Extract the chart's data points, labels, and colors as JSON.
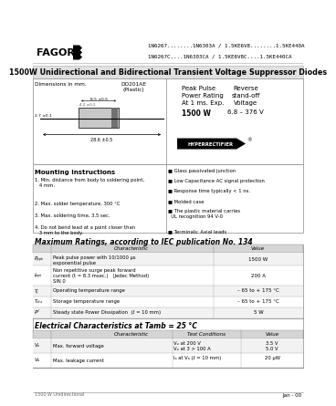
{
  "bg_color": "#ffffff",
  "header_text1": "1N6267........1N6303A / 1.5KE6V8........1.5KE440A",
  "header_text2": "1N6267C....1N6303CA / 1.5KE6V8C....1.5KE440CA",
  "company": "FAGOR",
  "title": "1500W Unidirectional and Bidirectional Transient Voltage Suppressor Diodes",
  "package_line1": "DO201AE",
  "package_line2": "(Plastic)",
  "features": [
    "Glass passivated junction",
    "Low Capacitance AC signal protection",
    "Response time typically < 1 ns.",
    "Molded case",
    "The plastic material carries\n  UL recognition 94 V-0",
    "Terminals: Axial leads"
  ],
  "mounting_title": "Mounting instructions",
  "mounting_items": [
    "1. Min. distance from body to soldering point,\n   4 mm.",
    "2. Max. solder temperature, 300 °C",
    "3. Max. soldering time, 3.5 sec.",
    "4. Do not bend lead at a point closer than\n   3 mm to the body."
  ],
  "max_ratings_title": "Maximum Ratings, according to IEC publication No. 134",
  "max_ratings": [
    [
      "Pₚₚₖ",
      "Peak pulse power with 10/1000 μs\nexponential pulse",
      "1500 W"
    ],
    [
      "Iₚₚₖ",
      "Non repetitive surge peak forward\ncurrent (t = 8.3 msec.)   (Jedec Method)\nSIN 0",
      "200 A"
    ],
    [
      "Tⱼ",
      "Operating temperature range",
      "– 65 to + 175 °C"
    ],
    [
      "Tₛₜₓ",
      "Storage temperature range",
      "– 65 to + 175 °C"
    ],
    [
      "Pᵈ",
      "Steady state Power Dissipation  (ℓ = 10 mm)",
      "5 W"
    ]
  ],
  "elec_title": "Electrical Characteristics at Tamb = 25 °C",
  "elec_rows": [
    [
      "Vₔ",
      "Max. forward voltage",
      "Vₔ at 200 V\nVₔ at 3 > 100 A",
      "3.5 V\n5.0 V"
    ],
    [
      "Vₐ",
      "Max. leakage current",
      "Iₐ at Vₐ (ℓ = 10 mm)",
      "20 μW"
    ]
  ],
  "footer_left": "1500 W Unidirectional",
  "footer_right": "Jan - 00"
}
